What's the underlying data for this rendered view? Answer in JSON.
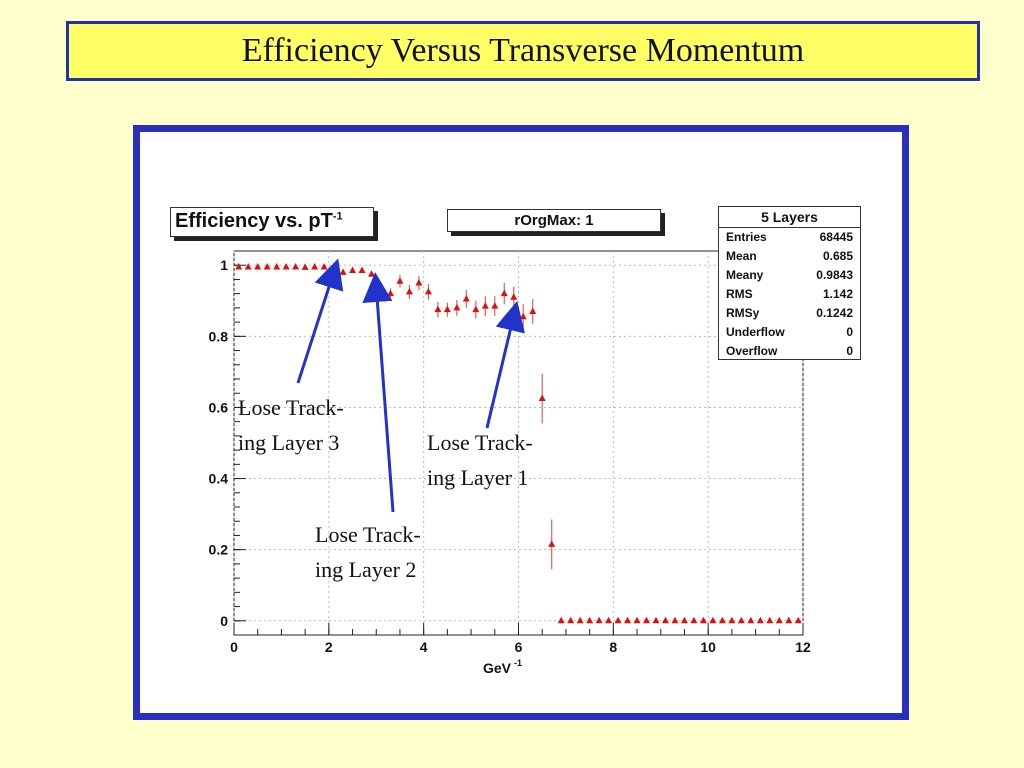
{
  "slide": {
    "title": "Efficiency Versus Transverse Momentum",
    "colors": {
      "background": "#ffffcc",
      "title_fill": "#ffff66",
      "border": "#2b2fc0",
      "arrow": "#2233cc",
      "marker": "#dd1111"
    }
  },
  "panels": {
    "title_main": "Efficiency vs. pT",
    "title_sup": "-1",
    "subtitle": "rOrgMax: 1"
  },
  "stats": {
    "header": "5 Layers",
    "rows": [
      {
        "key": "Entries",
        "value": "68445"
      },
      {
        "key": "Mean",
        "value": "0.685"
      },
      {
        "key": "Meany",
        "value": "0.9843"
      },
      {
        "key": "RMS",
        "value": "1.142"
      },
      {
        "key": "RMSy",
        "value": "0.1242"
      },
      {
        "key": "Underflow",
        "value": "0"
      },
      {
        "key": "Overflow",
        "value": "0"
      }
    ]
  },
  "annotations": [
    {
      "line1": "Lose Track-",
      "line2": "ing Layer 3",
      "target_x": 2.1,
      "target_y": 0.99
    },
    {
      "line1": "Lose Track-",
      "line2": "ing Layer 2",
      "target_x": 3.0,
      "target_y": 0.95
    },
    {
      "line1": "Lose Track-",
      "line2": "ing Layer 1",
      "target_x": 5.9,
      "target_y": 0.87
    }
  ],
  "chart_data": {
    "type": "scatter",
    "title": "Efficiency vs. pT-1",
    "xlabel": "GeV",
    "xlabel_sup": "-1",
    "ylabel": "",
    "xlim": [
      0,
      12
    ],
    "ylim": [
      -0.04,
      1.04
    ],
    "xticks": [
      "0",
      "2",
      "4",
      "6",
      "8",
      "10",
      "12"
    ],
    "yticks": [
      "0",
      "0.2",
      "0.4",
      "0.6",
      "0.8",
      "1"
    ],
    "grid": true,
    "series": [
      {
        "x": [
          0.1,
          0.3,
          0.5,
          0.7,
          0.9,
          1.1,
          1.3,
          1.5,
          1.7,
          1.9,
          2.1,
          2.3,
          2.5,
          2.7,
          2.9,
          3.1,
          3.3,
          3.5,
          3.7,
          3.9,
          4.1,
          4.3,
          4.5,
          4.7,
          4.9,
          5.1,
          5.3,
          5.5,
          5.7,
          5.9,
          6.1,
          6.3,
          6.5,
          6.7,
          6.9,
          7.1,
          7.3,
          7.5,
          7.7,
          7.9,
          8.1,
          8.3,
          8.5,
          8.7,
          8.9,
          9.1,
          9.3,
          9.5,
          9.7,
          9.9,
          10.1,
          10.3,
          10.5,
          10.7,
          10.9,
          11.1,
          11.3,
          11.5,
          11.7,
          11.9
        ],
        "y": [
          0.995,
          0.995,
          0.995,
          0.995,
          0.995,
          0.995,
          0.995,
          0.994,
          0.995,
          0.995,
          0.995,
          0.98,
          0.985,
          0.985,
          0.975,
          0.935,
          0.92,
          0.955,
          0.925,
          0.95,
          0.925,
          0.875,
          0.875,
          0.88,
          0.905,
          0.875,
          0.885,
          0.885,
          0.92,
          0.91,
          0.855,
          0.87,
          0.625,
          0.215,
          0,
          0,
          0,
          0,
          0,
          0,
          0,
          0,
          0,
          0,
          0,
          0,
          0,
          0,
          0,
          0,
          0,
          0,
          0,
          0,
          0,
          0,
          0,
          0,
          0,
          0
        ],
        "yerr": [
          0.003,
          0.003,
          0.003,
          0.003,
          0.003,
          0.003,
          0.003,
          0.003,
          0.003,
          0.003,
          0.004,
          0.006,
          0.007,
          0.007,
          0.008,
          0.012,
          0.015,
          0.018,
          0.02,
          0.02,
          0.022,
          0.022,
          0.02,
          0.022,
          0.025,
          0.025,
          0.028,
          0.028,
          0.03,
          0.03,
          0.035,
          0.035,
          0.07,
          0.07,
          0,
          0,
          0,
          0,
          0,
          0,
          0,
          0,
          0,
          0,
          0,
          0,
          0,
          0,
          0,
          0,
          0,
          0,
          0,
          0,
          0,
          0,
          0,
          0,
          0,
          0
        ]
      }
    ]
  }
}
